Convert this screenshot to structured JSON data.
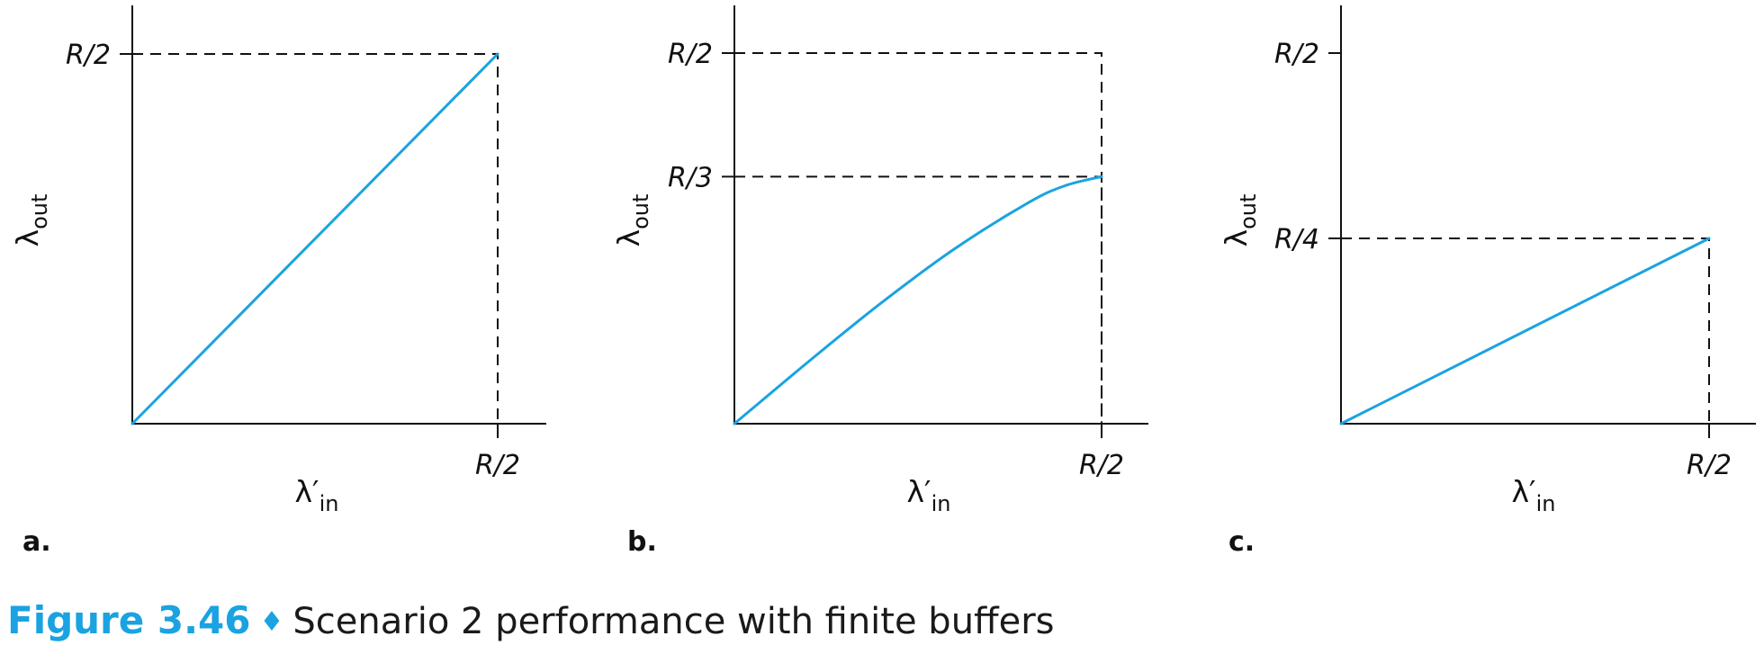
{
  "colors": {
    "series": "#1aa3e0",
    "caption_accent": "#1aa3e0",
    "ink": "#111111"
  },
  "caption": {
    "number": "Figure 3.46",
    "separator": "♦",
    "text": "Scenario 2 performance with finite buffers"
  },
  "chart_data": [
    {
      "panel": "a.",
      "type": "line",
      "xlabel": "λ′",
      "xlabel_sub": "in",
      "ylabel": "λ",
      "ylabel_sub": "out",
      "xlim": [
        0,
        0.5
      ],
      "ylim": [
        0,
        0.5
      ],
      "x_ticks": [
        {
          "value": 0.5,
          "label": "R/2"
        }
      ],
      "y_ticks": [
        {
          "value": 0.5,
          "label": "R/2"
        }
      ],
      "guides": [
        {
          "x": 0.5,
          "y": 0.5
        }
      ],
      "series": [
        {
          "curve": "linear",
          "x": [
            0,
            0.5
          ],
          "y": [
            0,
            0.5
          ]
        }
      ]
    },
    {
      "panel": "b.",
      "type": "line",
      "xlabel": "λ′",
      "xlabel_sub": "in",
      "ylabel": "λ",
      "ylabel_sub": "out",
      "xlim": [
        0,
        0.5
      ],
      "ylim": [
        0,
        0.5
      ],
      "x_ticks": [
        {
          "value": 0.5,
          "label": "R/2"
        }
      ],
      "y_ticks": [
        {
          "value": 0.5,
          "label": "R/2"
        },
        {
          "value": 0.3333,
          "label": "R/3"
        }
      ],
      "guides": [
        {
          "x": 0.5,
          "y": 0.5
        },
        {
          "x": 0.5,
          "y": 0.3333
        }
      ],
      "series": [
        {
          "curve": "smooth",
          "x": [
            0,
            0.1,
            0.2,
            0.3,
            0.4,
            0.45,
            0.5
          ],
          "y": [
            0,
            0.083,
            0.163,
            0.236,
            0.298,
            0.321,
            0.3333
          ]
        }
      ]
    },
    {
      "panel": "c.",
      "type": "line",
      "xlabel": "λ′",
      "xlabel_sub": "in",
      "ylabel": "λ",
      "ylabel_sub": "out",
      "xlim": [
        0,
        0.5
      ],
      "ylim": [
        0,
        0.5
      ],
      "x_ticks": [
        {
          "value": 0.5,
          "label": "R/2"
        }
      ],
      "y_ticks": [
        {
          "value": 0.5,
          "label": "R/2"
        },
        {
          "value": 0.25,
          "label": "R/4"
        }
      ],
      "guides": [
        {
          "x": 0.5,
          "y": 0.25
        }
      ],
      "series": [
        {
          "curve": "linear",
          "x": [
            0,
            0.5
          ],
          "y": [
            0,
            0.25
          ]
        }
      ]
    }
  ]
}
